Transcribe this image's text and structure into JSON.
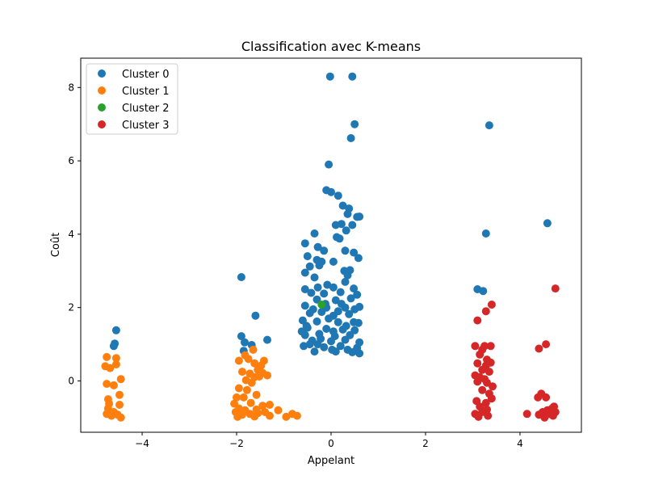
{
  "chart_data": {
    "type": "scatter",
    "title": "Classification avec K-means",
    "xlabel": "Appelant",
    "ylabel": "Coût",
    "xlim": [
      -5.3,
      5.3
    ],
    "ylim": [
      -1.4,
      8.8
    ],
    "xticks": [
      -4,
      -2,
      0,
      2,
      4
    ],
    "xtick_labels": [
      "−4",
      "−2",
      "0",
      "2",
      "4"
    ],
    "yticks": [
      0,
      2,
      4,
      6,
      8
    ],
    "ytick_labels": [
      "0",
      "2",
      "4",
      "6",
      "8"
    ],
    "grid": false,
    "legend_position": "top-left",
    "series": [
      {
        "name": "Cluster 0",
        "color": "#1f77b4",
        "points": [
          [
            -4.55,
            1.38
          ],
          [
            -4.58,
            1.02
          ],
          [
            -4.6,
            0.95
          ],
          [
            -1.9,
            2.83
          ],
          [
            -1.6,
            1.78
          ],
          [
            -1.9,
            1.22
          ],
          [
            -1.83,
            1.05
          ],
          [
            -1.68,
            0.98
          ],
          [
            -1.35,
            1.12
          ],
          [
            -1.85,
            0.82
          ],
          [
            -0.02,
            8.3
          ],
          [
            0.45,
            8.3
          ],
          [
            0.5,
            7.0
          ],
          [
            0.42,
            6.62
          ],
          [
            -0.05,
            5.9
          ],
          [
            -0.1,
            5.2
          ],
          [
            0.0,
            5.15
          ],
          [
            0.15,
            5.05
          ],
          [
            0.25,
            4.78
          ],
          [
            0.38,
            4.7
          ],
          [
            0.35,
            4.55
          ],
          [
            0.6,
            4.48
          ],
          [
            0.55,
            4.47
          ],
          [
            0.1,
            4.25
          ],
          [
            0.22,
            4.28
          ],
          [
            0.45,
            4.25
          ],
          [
            0.32,
            4.1
          ],
          [
            -0.35,
            4.02
          ],
          [
            0.12,
            3.92
          ],
          [
            -0.55,
            3.75
          ],
          [
            0.18,
            3.88
          ],
          [
            -0.28,
            3.65
          ],
          [
            -0.15,
            3.55
          ],
          [
            0.3,
            3.55
          ],
          [
            0.48,
            3.5
          ],
          [
            0.58,
            3.35
          ],
          [
            -0.5,
            3.4
          ],
          [
            -0.3,
            3.3
          ],
          [
            -0.2,
            3.25
          ],
          [
            0.05,
            3.25
          ],
          [
            -0.45,
            3.12
          ],
          [
            -0.25,
            3.15
          ],
          [
            0.4,
            3.02
          ],
          [
            0.28,
            3.0
          ],
          [
            -0.55,
            2.95
          ],
          [
            0.35,
            2.88
          ],
          [
            -0.35,
            2.82
          ],
          [
            -0.08,
            2.62
          ],
          [
            0.3,
            2.7
          ],
          [
            -0.55,
            2.5
          ],
          [
            -0.28,
            2.55
          ],
          [
            0.05,
            2.55
          ],
          [
            0.48,
            2.52
          ],
          [
            -0.42,
            2.4
          ],
          [
            -0.15,
            2.38
          ],
          [
            0.2,
            2.42
          ],
          [
            0.55,
            2.35
          ],
          [
            -0.3,
            2.22
          ],
          [
            0.1,
            2.2
          ],
          [
            0.42,
            2.25
          ],
          [
            -0.55,
            2.05
          ],
          [
            -0.1,
            2.0
          ],
          [
            0.3,
            2.0
          ],
          [
            0.5,
            1.95
          ],
          [
            -0.45,
            1.85
          ],
          [
            -0.2,
            1.88
          ],
          [
            0.05,
            1.78
          ],
          [
            0.38,
            1.82
          ],
          [
            -0.6,
            1.65
          ],
          [
            -0.3,
            1.62
          ],
          [
            0.15,
            1.6
          ],
          [
            0.58,
            1.58
          ],
          [
            -0.5,
            1.45
          ],
          [
            -0.1,
            1.42
          ],
          [
            0.25,
            1.4
          ],
          [
            0.5,
            1.38
          ],
          [
            -0.55,
            1.25
          ],
          [
            -0.25,
            1.28
          ],
          [
            0.08,
            1.22
          ],
          [
            0.4,
            1.25
          ],
          [
            -0.4,
            1.1
          ],
          [
            0.0,
            1.08
          ],
          [
            0.3,
            1.12
          ],
          [
            0.6,
            1.05
          ],
          [
            -0.58,
            0.95
          ],
          [
            -0.15,
            0.92
          ],
          [
            0.2,
            0.95
          ],
          [
            0.55,
            0.9
          ],
          [
            -0.35,
            0.8
          ],
          [
            0.1,
            0.8
          ],
          [
            0.45,
            0.78
          ],
          [
            -0.52,
            1.5
          ],
          [
            -0.38,
            1.95
          ],
          [
            -0.05,
            1.7
          ],
          [
            0.32,
            1.5
          ],
          [
            0.15,
            1.9
          ],
          [
            -0.22,
            1.15
          ],
          [
            0.05,
            1.35
          ],
          [
            -0.45,
            1.0
          ],
          [
            0.48,
            1.6
          ],
          [
            -0.12,
            2.1
          ],
          [
            0.22,
            2.1
          ],
          [
            0.6,
            2.02
          ],
          [
            -0.62,
            1.35
          ],
          [
            0.02,
            0.85
          ],
          [
            -0.28,
            1.0
          ],
          [
            0.35,
            0.85
          ],
          [
            0.6,
            0.75
          ],
          [
            3.35,
            6.97
          ],
          [
            3.28,
            4.02
          ],
          [
            3.1,
            2.5
          ],
          [
            3.22,
            2.45
          ],
          [
            4.58,
            4.3
          ]
        ]
      },
      {
        "name": "Cluster 1",
        "color": "#ff7f0e",
        "points": [
          [
            -4.75,
            0.65
          ],
          [
            -4.55,
            0.62
          ],
          [
            -4.78,
            0.4
          ],
          [
            -4.68,
            0.35
          ],
          [
            -4.55,
            0.45
          ],
          [
            -4.45,
            0.05
          ],
          [
            -4.75,
            -0.08
          ],
          [
            -4.6,
            -0.12
          ],
          [
            -4.48,
            -0.38
          ],
          [
            -4.72,
            -0.5
          ],
          [
            -4.7,
            -0.62
          ],
          [
            -4.48,
            -0.65
          ],
          [
            -4.72,
            -0.75
          ],
          [
            -4.6,
            -0.85
          ],
          [
            -4.75,
            -0.9
          ],
          [
            -4.52,
            -0.92
          ],
          [
            -4.65,
            -0.95
          ],
          [
            -4.45,
            -1.0
          ],
          [
            -1.65,
            0.85
          ],
          [
            -1.82,
            0.7
          ],
          [
            -1.75,
            0.6
          ],
          [
            -1.42,
            0.55
          ],
          [
            -1.95,
            0.55
          ],
          [
            -1.62,
            0.48
          ],
          [
            -1.48,
            0.42
          ],
          [
            -1.55,
            0.3
          ],
          [
            -1.88,
            0.25
          ],
          [
            -1.72,
            0.2
          ],
          [
            -1.45,
            0.22
          ],
          [
            -1.62,
            0.1
          ],
          [
            -1.52,
            0.12
          ],
          [
            -1.35,
            0.15
          ],
          [
            -1.8,
            0.02
          ],
          [
            -1.68,
            -0.05
          ],
          [
            -1.95,
            -0.2
          ],
          [
            -1.78,
            -0.25
          ],
          [
            -2.0,
            -0.45
          ],
          [
            -1.85,
            -0.45
          ],
          [
            -1.58,
            -0.38
          ],
          [
            -2.05,
            -0.62
          ],
          [
            -1.7,
            -0.6
          ],
          [
            -1.45,
            -0.68
          ],
          [
            -1.3,
            -0.65
          ],
          [
            -1.95,
            -0.75
          ],
          [
            -1.82,
            -0.8
          ],
          [
            -1.58,
            -0.78
          ],
          [
            -2.02,
            -0.85
          ],
          [
            -1.88,
            -0.92
          ],
          [
            -1.72,
            -0.9
          ],
          [
            -1.55,
            -0.88
          ],
          [
            -1.4,
            -0.85
          ],
          [
            -1.98,
            -0.98
          ],
          [
            -1.62,
            -0.97
          ],
          [
            -1.3,
            -0.95
          ],
          [
            -1.12,
            -0.8
          ],
          [
            -0.95,
            -0.98
          ],
          [
            -0.82,
            -0.9
          ],
          [
            -0.72,
            -0.95
          ]
        ]
      },
      {
        "name": "Cluster 2",
        "color": "#2ca02c",
        "points": [
          [
            -0.2,
            2.08
          ]
        ]
      },
      {
        "name": "Cluster 3",
        "color": "#d62728",
        "points": [
          [
            3.4,
            2.08
          ],
          [
            3.28,
            1.9
          ],
          [
            3.1,
            1.65
          ],
          [
            3.25,
            0.95
          ],
          [
            3.05,
            0.95
          ],
          [
            3.38,
            0.95
          ],
          [
            3.2,
            0.85
          ],
          [
            3.15,
            0.72
          ],
          [
            3.3,
            0.58
          ],
          [
            3.38,
            0.5
          ],
          [
            3.28,
            0.42
          ],
          [
            3.1,
            0.48
          ],
          [
            3.2,
            0.3
          ],
          [
            3.35,
            0.25
          ],
          [
            3.05,
            0.15
          ],
          [
            3.15,
            0.1
          ],
          [
            3.25,
            0.05
          ],
          [
            3.1,
            -0.02
          ],
          [
            3.3,
            -0.05
          ],
          [
            3.42,
            -0.15
          ],
          [
            3.2,
            -0.25
          ],
          [
            3.35,
            -0.35
          ],
          [
            3.4,
            -0.48
          ],
          [
            3.28,
            -0.6
          ],
          [
            3.08,
            -0.55
          ],
          [
            3.15,
            -0.7
          ],
          [
            3.3,
            -0.78
          ],
          [
            3.2,
            -0.85
          ],
          [
            3.05,
            -0.9
          ],
          [
            3.32,
            -0.95
          ],
          [
            3.12,
            -0.98
          ],
          [
            4.75,
            2.52
          ],
          [
            4.55,
            1.0
          ],
          [
            4.4,
            0.88
          ],
          [
            4.45,
            -0.35
          ],
          [
            4.55,
            -0.45
          ],
          [
            4.38,
            -0.45
          ],
          [
            4.68,
            -0.75
          ],
          [
            4.72,
            -0.7
          ],
          [
            4.58,
            -0.8
          ],
          [
            4.48,
            -0.85
          ],
          [
            4.62,
            -0.9
          ],
          [
            4.7,
            -0.95
          ],
          [
            4.4,
            -0.92
          ],
          [
            4.52,
            -1.0
          ],
          [
            4.75,
            -0.85
          ],
          [
            4.15,
            -0.9
          ]
        ]
      }
    ]
  }
}
